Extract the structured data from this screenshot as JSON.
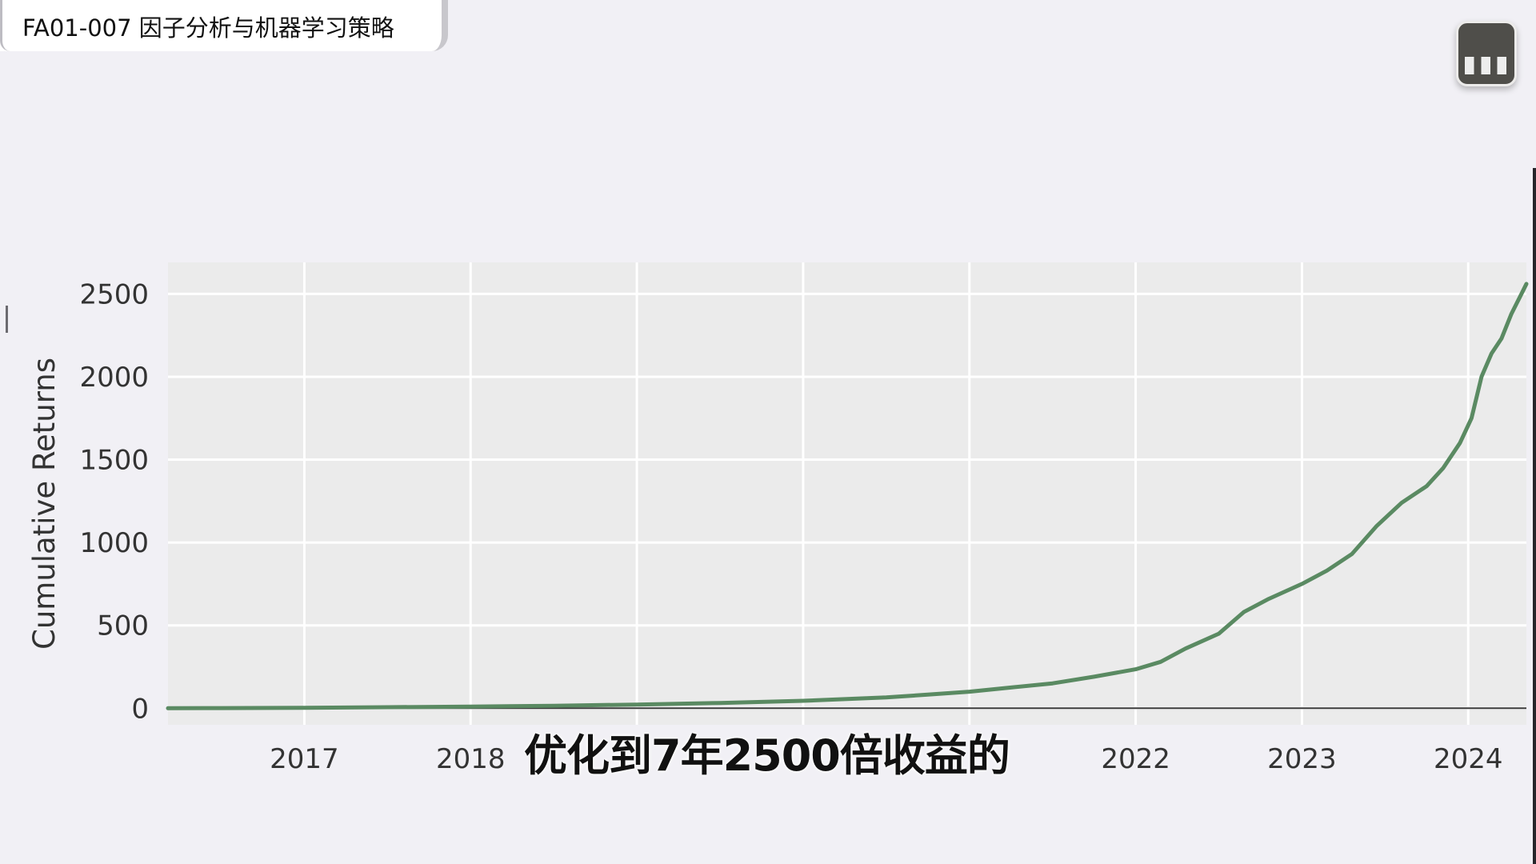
{
  "header": {
    "title": "FA01-007 因子分析与机器学习策略"
  },
  "logo": {
    "icon": "bilibili-channel-logo-icon"
  },
  "subtitle": {
    "text": "优化到7年2500倍收益的"
  },
  "chart_data": {
    "type": "line",
    "title": "",
    "xlabel": "",
    "ylabel": "Cumulative Returns",
    "xlim": [
      2016.18,
      2024.35
    ],
    "ylim": [
      -100,
      2690
    ],
    "yticks": [
      0,
      500,
      1000,
      1500,
      2000,
      2500
    ],
    "xticks": [
      {
        "value": 2017,
        "label": "2017"
      },
      {
        "value": 2018,
        "label": "2018"
      },
      {
        "value": 2022,
        "label": "2022"
      },
      {
        "value": 2023,
        "label": "2023"
      },
      {
        "value": 2024,
        "label": "2024"
      }
    ],
    "grid": true,
    "legend": "none",
    "colors": {
      "line": "#5a8a62",
      "background": "#ebebeb",
      "grid": "#ffffff"
    },
    "series": [
      {
        "x": [
          2016.18,
          2016.5,
          2017.0,
          2017.5,
          2018.0,
          2018.5,
          2019.0,
          2019.5,
          2020.0,
          2020.25,
          2020.5,
          2020.75,
          2021.0,
          2021.25,
          2021.5,
          2021.75,
          2022.0,
          2022.15,
          2022.3,
          2022.5,
          2022.65,
          2022.8,
          2023.0,
          2023.15,
          2023.3,
          2023.45,
          2023.6,
          2023.75,
          2023.85,
          2023.95,
          2024.02,
          2024.08,
          2024.14,
          2024.2,
          2024.26,
          2024.32,
          2024.35
        ],
        "y": [
          0,
          1,
          3,
          6,
          10,
          15,
          22,
          32,
          45,
          55,
          65,
          82,
          100,
          125,
          150,
          190,
          235,
          280,
          360,
          450,
          580,
          660,
          750,
          830,
          930,
          1100,
          1240,
          1340,
          1450,
          1600,
          1750,
          2000,
          2140,
          2230,
          2380,
          2500,
          2560
        ]
      }
    ]
  }
}
